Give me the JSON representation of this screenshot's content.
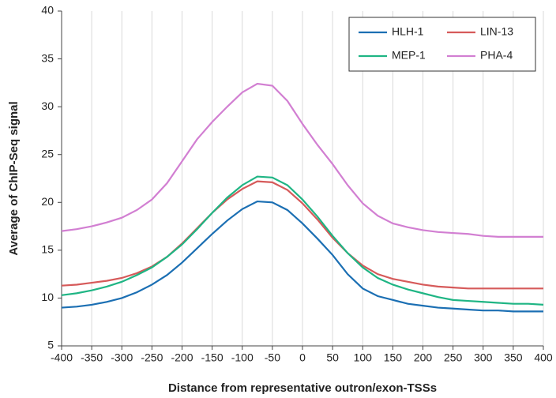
{
  "chart_data": {
    "type": "line",
    "xlabel": "Distance from representative outron/exon-TSSs",
    "ylabel": "Average of ChIP-Seq signal",
    "x": [
      -400,
      -375,
      -350,
      -325,
      -300,
      -275,
      -250,
      -225,
      -200,
      -175,
      -150,
      -125,
      -100,
      -75,
      -50,
      -25,
      0,
      25,
      50,
      75,
      100,
      125,
      150,
      175,
      200,
      225,
      250,
      275,
      300,
      325,
      350,
      375,
      400
    ],
    "series": [
      {
        "name": "HLH-1",
        "color": "#1b6fb3",
        "values": [
          9.0,
          9.1,
          9.3,
          9.6,
          10.0,
          10.6,
          11.4,
          12.4,
          13.7,
          15.2,
          16.7,
          18.1,
          19.3,
          20.1,
          20.0,
          19.2,
          17.8,
          16.2,
          14.5,
          12.5,
          11.0,
          10.2,
          9.8,
          9.4,
          9.2,
          9.0,
          8.9,
          8.8,
          8.7,
          8.7,
          8.6,
          8.6,
          8.6
        ]
      },
      {
        "name": "LIN-13",
        "color": "#d65a5a",
        "values": [
          11.3,
          11.4,
          11.6,
          11.8,
          12.1,
          12.6,
          13.3,
          14.3,
          15.7,
          17.3,
          18.9,
          20.3,
          21.4,
          22.2,
          22.1,
          21.3,
          19.9,
          18.2,
          16.3,
          14.7,
          13.4,
          12.5,
          12.0,
          11.7,
          11.4,
          11.2,
          11.1,
          11.0,
          11.0,
          11.0,
          11.0,
          11.0,
          11.0
        ]
      },
      {
        "name": "MEP-1",
        "color": "#1fb584",
        "values": [
          10.3,
          10.5,
          10.8,
          11.2,
          11.7,
          12.4,
          13.2,
          14.3,
          15.6,
          17.2,
          18.9,
          20.5,
          21.8,
          22.7,
          22.6,
          21.8,
          20.3,
          18.5,
          16.5,
          14.7,
          13.2,
          12.1,
          11.4,
          10.9,
          10.5,
          10.1,
          9.8,
          9.7,
          9.6,
          9.5,
          9.4,
          9.4,
          9.3
        ]
      },
      {
        "name": "PHA-4",
        "color": "#d27fd2",
        "values": [
          17.0,
          17.2,
          17.5,
          17.9,
          18.4,
          19.2,
          20.3,
          22.0,
          24.3,
          26.6,
          28.4,
          30.0,
          31.5,
          32.4,
          32.2,
          30.6,
          28.2,
          26.0,
          24.0,
          21.8,
          19.9,
          18.6,
          17.8,
          17.4,
          17.1,
          16.9,
          16.8,
          16.7,
          16.5,
          16.4,
          16.4,
          16.4,
          16.4
        ]
      }
    ],
    "xlim": [
      -400,
      400
    ],
    "xticks": [
      -400,
      -350,
      -300,
      -250,
      -200,
      -150,
      -100,
      -50,
      0,
      50,
      100,
      150,
      200,
      250,
      300,
      350,
      400
    ],
    "ylim": [
      5,
      40
    ],
    "yticks": [
      5,
      10,
      15,
      20,
      25,
      30,
      35,
      40
    ],
    "grid": true,
    "legend": "upper right"
  }
}
